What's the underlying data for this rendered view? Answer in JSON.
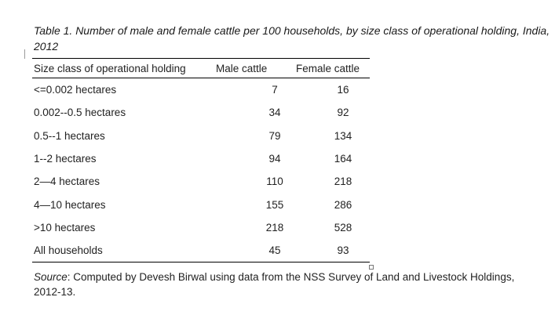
{
  "caption": "Table 1. Number of male and female cattle per 100 households, by size class of operational holding, India, 2012",
  "table": {
    "headers": {
      "size_class": "Size class of operational holding",
      "male": "Male cattle",
      "female": "Female cattle"
    },
    "rows": [
      {
        "label": "<=0.002 hectares",
        "male": "7",
        "female": "16"
      },
      {
        "label": "0.002--0.5 hectares",
        "male": "34",
        "female": "92"
      },
      {
        "label": "0.5--1 hectares",
        "male": "79",
        "female": "134"
      },
      {
        "label": "1--2 hectares",
        "male": "94",
        "female": "164"
      },
      {
        "label": "2—4 hectares",
        "male": "110",
        "female": "218"
      },
      {
        "label": "4—10 hectares",
        "male": "155",
        "female": "286"
      },
      {
        "label": ">10 hectares",
        "male": "218",
        "female": "528"
      },
      {
        "label": "All households",
        "male": "45",
        "female": "93"
      }
    ]
  },
  "source": {
    "label": "Source",
    "text": ": Computed by Devesh Birwal using data from the NSS Survey of Land and Livestock Holdings, 2012-13."
  }
}
